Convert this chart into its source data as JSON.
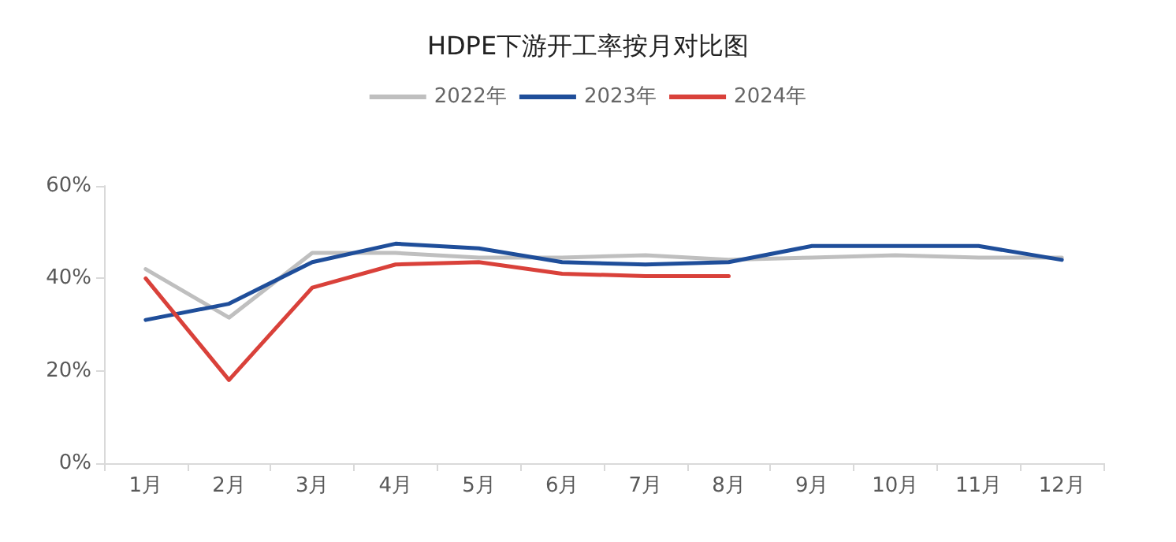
{
  "chart_data": {
    "type": "line",
    "title": "HDPE下游开工率按月对比图",
    "categories": [
      "1月",
      "2月",
      "3月",
      "4月",
      "5月",
      "6月",
      "7月",
      "8月",
      "9月",
      "10月",
      "11月",
      "12月"
    ],
    "series": [
      {
        "name": "2022年",
        "color": "#bfbfbf",
        "values": [
          42,
          31.5,
          45.5,
          45.5,
          44.5,
          44.5,
          45,
          44,
          44.5,
          45,
          44.5,
          44.5
        ]
      },
      {
        "name": "2023年",
        "color": "#1f4e9a",
        "values": [
          31,
          34.5,
          43.5,
          47.5,
          46.5,
          43.5,
          43,
          43.5,
          47,
          47,
          47,
          44
        ]
      },
      {
        "name": "2024年",
        "color": "#d9413a",
        "values": [
          40,
          18,
          38,
          43,
          43.5,
          41,
          40.5,
          40.5,
          null,
          null,
          null,
          null
        ]
      }
    ],
    "ylim": [
      0,
      60
    ],
    "yticks": [
      {
        "value": 0,
        "label": "0%"
      },
      {
        "value": 20,
        "label": "20%"
      },
      {
        "value": 40,
        "label": "40%"
      },
      {
        "value": 60,
        "label": "60%"
      }
    ],
    "grid": false,
    "legend": "top",
    "marker": "none",
    "line_style": "solid"
  }
}
